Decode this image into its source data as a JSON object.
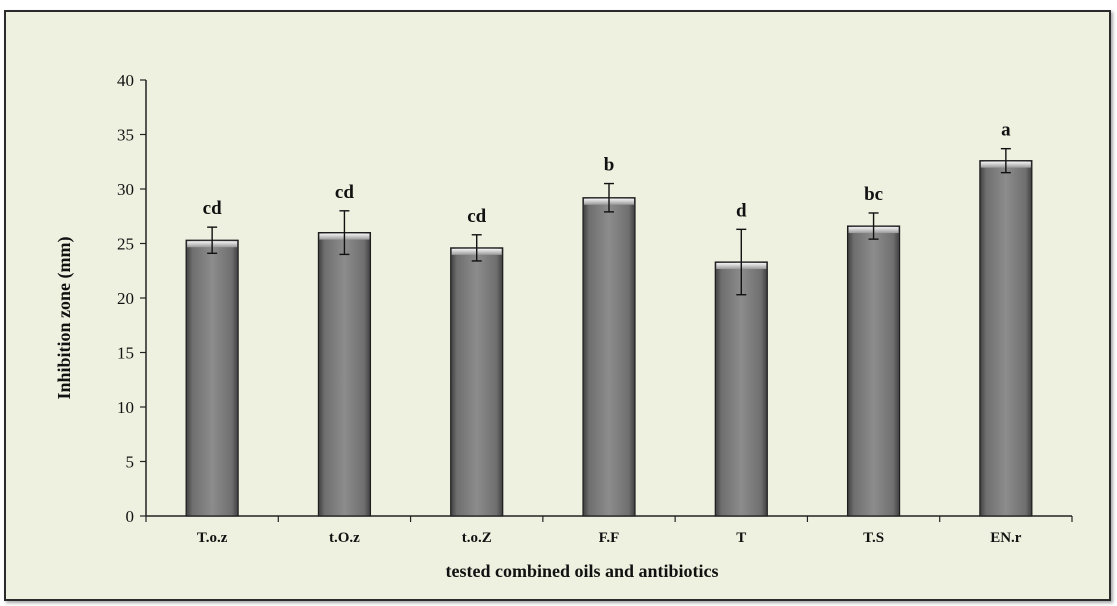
{
  "chart_data": {
    "type": "bar",
    "title": "",
    "xlabel": "tested combined oils and antibiotics",
    "ylabel": "Inhibition zone (mm)",
    "ylim": [
      0,
      40
    ],
    "yticks": [
      0,
      5,
      10,
      15,
      20,
      25,
      30,
      35,
      40
    ],
    "grid": false,
    "legend": "none",
    "categories": [
      "T.o.z",
      "t.O.z",
      "t.o.Z",
      "F.F",
      "T",
      "T.S",
      "EN.r"
    ],
    "values": [
      25.3,
      26.0,
      24.6,
      29.2,
      23.3,
      26.6,
      32.6
    ],
    "errors": [
      1.2,
      2.0,
      1.2,
      1.3,
      3.0,
      1.2,
      1.1
    ],
    "significance_letters": [
      "cd",
      "cd",
      "cd",
      "b",
      "d",
      "bc",
      "a"
    ],
    "bar_color": "#8a8a8a",
    "background_color": "#eef1e0"
  }
}
